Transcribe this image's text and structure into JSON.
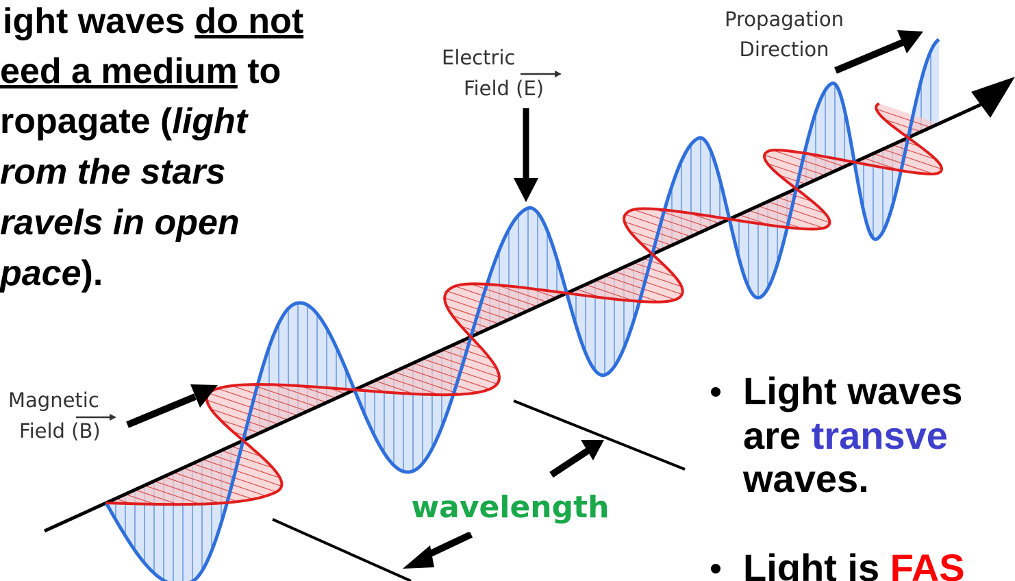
{
  "left_text": {
    "lines": [
      [
        "ight waves ",
        "do not"
      ],
      [
        "eed a medium",
        " to"
      ],
      [
        "ropagate (",
        "light"
      ],
      [
        "rom the stars"
      ],
      [
        "ravels in open"
      ],
      [
        "pace",
        ")."
      ]
    ]
  },
  "labels": {
    "propagation": [
      "Propagation",
      "Direction"
    ],
    "electric": [
      "Electric",
      "Field (E)"
    ],
    "magnetic": [
      "Magnetic",
      "Field (B)"
    ],
    "wavelength": "wavelength"
  },
  "bullets": [
    {
      "lines": [
        [
          "Light waves"
        ],
        [
          "are ",
          "transve"
        ],
        [
          "waves."
        ]
      ]
    },
    {
      "lines": [
        [
          "Light is ",
          "FAS"
        ]
      ]
    }
  ]
}
